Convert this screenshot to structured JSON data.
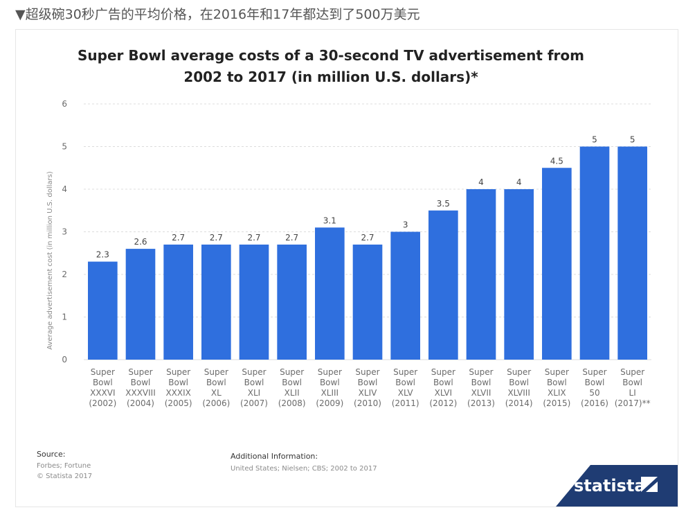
{
  "caption": "▼超级碗30秒广告的平均价格，在2016年和17年都达到了500万美元",
  "chart_data": {
    "type": "bar",
    "title_lines": [
      "Super Bowl average costs of a 30-second TV advertisement from",
      "2002 to 2017 (in million U.S. dollars)*"
    ],
    "ylabel": "Average advertisement cost (in million U.S. dollars)",
    "ylim": [
      0,
      6
    ],
    "yticks": [
      "0",
      "1",
      "2",
      "3",
      "4",
      "5",
      "6"
    ],
    "grid": true,
    "bar_color": "#2f6fde",
    "categories": [
      [
        "Super",
        "Bowl",
        "XXXVI",
        "(2002)"
      ],
      [
        "Super",
        "Bowl",
        "XXXVIII",
        "(2004)"
      ],
      [
        "Super",
        "Bowl",
        "XXXIX",
        "(2005)"
      ],
      [
        "Super",
        "Bowl",
        "XL",
        "(2006)"
      ],
      [
        "Super",
        "Bowl",
        "XLI",
        "(2007)"
      ],
      [
        "Super",
        "Bowl",
        "XLII",
        "(2008)"
      ],
      [
        "Super",
        "Bowl",
        "XLIII",
        "(2009)"
      ],
      [
        "Super",
        "Bowl",
        "XLIV",
        "(2010)"
      ],
      [
        "Super",
        "Bowl",
        "XLV",
        "(2011)"
      ],
      [
        "Super",
        "Bowl",
        "XLVI",
        "(2012)"
      ],
      [
        "Super",
        "Bowl",
        "XLVII",
        "(2013)"
      ],
      [
        "Super",
        "Bowl",
        "XLVIII",
        "(2014)"
      ],
      [
        "Super",
        "Bowl",
        "XLIX",
        "(2015)"
      ],
      [
        "Super",
        "Bowl",
        "50",
        "(2016)"
      ],
      [
        "Super",
        "Bowl",
        "LI",
        "(2017)**"
      ]
    ],
    "values": [
      2.3,
      2.6,
      2.7,
      2.7,
      2.7,
      2.7,
      3.1,
      2.7,
      3,
      3.5,
      4,
      4,
      4.5,
      5,
      5
    ],
    "value_labels": [
      "2.3",
      "2.6",
      "2.7",
      "2.7",
      "2.7",
      "2.7",
      "3.1",
      "2.7",
      "3",
      "3.5",
      "4",
      "4",
      "4.5",
      "5",
      "5"
    ]
  },
  "footer": {
    "source_heading": "Source:",
    "source_lines": [
      "Forbes; Fortune",
      "© Statista 2017"
    ],
    "info_heading": "Additional Information:",
    "info_text": "United States; Nielsen; CBS; 2002 to 2017"
  },
  "brand": {
    "name": "statista",
    "color": "#1f3c73",
    "icon": "statista-logo-icon"
  }
}
